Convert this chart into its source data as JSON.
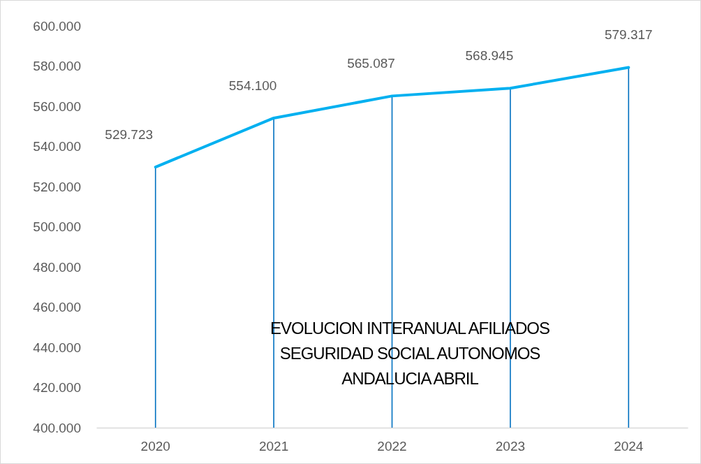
{
  "chart_data": {
    "type": "line",
    "title": "EVOLUCION INTERANUAL AFILIADOS SEGURIDAD SOCIAL AUTONOMOS ANDALUCIA ABRIL",
    "categories": [
      "2020",
      "2021",
      "2022",
      "2023",
      "2024"
    ],
    "series": [
      {
        "type": "bar",
        "color": "#0070c0",
        "values": [
          529723,
          554100,
          565087,
          568945,
          579317
        ]
      },
      {
        "color": "#00b0f0",
        "values": [
          529723,
          554100,
          565087,
          568945,
          579317
        ]
      }
    ],
    "value_labels": [
      "529.723",
      "554.100",
      "565.087",
      "568.945",
      "579.317"
    ],
    "ylim": [
      400000,
      600000
    ],
    "yticks": [
      {
        "value": 400000,
        "label": "400.000"
      },
      {
        "value": 420000,
        "label": "420.000"
      },
      {
        "value": 440000,
        "label": "440.000"
      },
      {
        "value": 460000,
        "label": "460.000"
      },
      {
        "value": 480000,
        "label": "480.000"
      },
      {
        "value": 500000,
        "label": "500.000"
      },
      {
        "value": 520000,
        "label": "520.000"
      },
      {
        "value": 540000,
        "label": "540.000"
      },
      {
        "value": 560000,
        "label": "560.000"
      },
      {
        "value": 580000,
        "label": "580.000"
      },
      {
        "value": 600000,
        "label": "600.000"
      }
    ],
    "grid": false,
    "legend": false,
    "marker": "none",
    "line_style": "solid"
  }
}
